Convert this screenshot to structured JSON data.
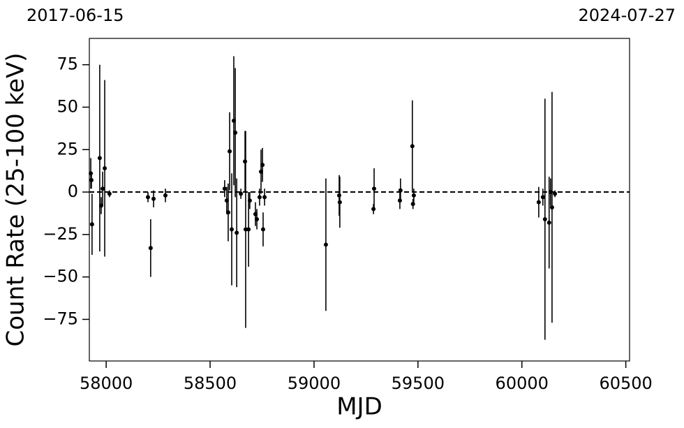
{
  "chart_data": {
    "type": "errorbar",
    "annotations": [
      "2017-06-15",
      "2024-07-27"
    ],
    "xlabel": "MJD",
    "ylabel": "Count Rate (25-100 keV)",
    "color": "#000000",
    "hline": 0,
    "xlim": [
      57919,
      60518
    ],
    "xticks": [
      58000,
      58500,
      59000,
      59500,
      60000,
      60500
    ],
    "ylim": [
      -99.5,
      90.5
    ],
    "yticks": [
      {
        "value": -75,
        "label": "−75"
      },
      {
        "value": -50,
        "label": "−50"
      },
      {
        "value": -25,
        "label": "−25"
      },
      0,
      25,
      50,
      75
    ],
    "x": [
      57926,
      57929,
      57932,
      57969,
      57976,
      57983,
      57993,
      58016,
      58201,
      58214,
      58228,
      58285,
      58570,
      58580,
      58587,
      58594,
      58604,
      58614,
      58621,
      58628,
      58648,
      58668,
      58671,
      58685,
      58691,
      58718,
      58725,
      58738,
      58745,
      58752,
      58755,
      58762,
      59057,
      59121,
      59124,
      59286,
      59289,
      59413,
      59416,
      59473,
      59476,
      59480,
      60081,
      60101,
      60111,
      60131,
      60138,
      60145,
      60159
    ],
    "values": [
      11,
      7,
      -19,
      20,
      -8,
      2,
      14,
      -1,
      -3,
      -33,
      -4,
      -2,
      2,
      -5,
      -12,
      24,
      -22,
      42,
      35,
      -24,
      -1,
      18,
      -22,
      -22,
      -5,
      -13,
      -16,
      -3,
      12,
      16,
      -22,
      -3,
      -31,
      -2,
      -6,
      -10,
      2,
      -5,
      1,
      27,
      -7,
      -2,
      -6,
      -3,
      -16,
      -18,
      0,
      -9,
      -1
    ],
    "errors": [
      9,
      5,
      18,
      55,
      5,
      10,
      52,
      2,
      3,
      17,
      5,
      4,
      5,
      8,
      17,
      23,
      33,
      38,
      38,
      32,
      3,
      18,
      58,
      22,
      5,
      7,
      6,
      5,
      13,
      10,
      10,
      5,
      39,
      12,
      15,
      3,
      12,
      5,
      7,
      27,
      3,
      4,
      9,
      5,
      71,
      27,
      8,
      68,
      2
    ]
  }
}
